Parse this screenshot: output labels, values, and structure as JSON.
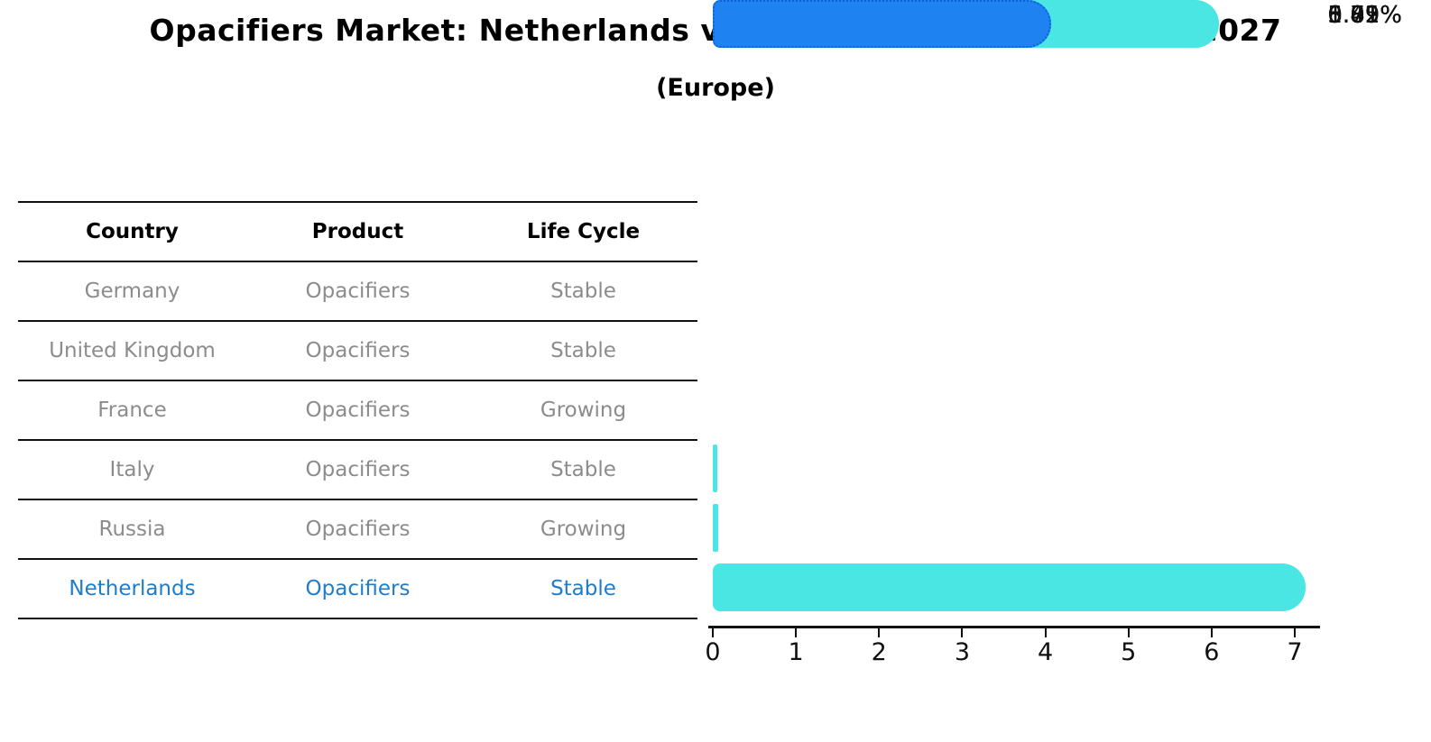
{
  "title": "Opacifiers Market: Netherlands vs Top 5 Major Economies in 2027",
  "subtitle": "(Europe)",
  "table": {
    "columns": {
      "country": "Country",
      "product": "Product",
      "life_cycle": "Life Cycle"
    },
    "rows": [
      {
        "country": "Germany",
        "product": "Opacifiers",
        "life_cycle": "Stable",
        "highlighted": false
      },
      {
        "country": "United Kingdom",
        "product": "Opacifiers",
        "life_cycle": "Stable",
        "highlighted": false
      },
      {
        "country": "France",
        "product": "Opacifiers",
        "life_cycle": "Growing",
        "highlighted": false
      },
      {
        "country": "Italy",
        "product": "Opacifiers",
        "life_cycle": "Stable",
        "highlighted": false
      },
      {
        "country": "Russia",
        "product": "Opacifiers",
        "life_cycle": "Growing",
        "highlighted": false
      },
      {
        "country": "Netherlands",
        "product": "Opacifiers",
        "life_cycle": "Stable",
        "highlighted": true
      }
    ]
  },
  "chart_data": {
    "type": "bar",
    "orientation": "horizontal",
    "title": "Opacifiers Market: Netherlands vs Top 5 Major Economies in 2027",
    "subtitle": "(Europe)",
    "categories": [
      "Germany",
      "United Kingdom",
      "France",
      "Italy",
      "Russia",
      "Netherlands"
    ],
    "values": [
      0.01,
      0.02,
      6.85,
      1.49,
      5.81,
      3.79
    ],
    "value_labels": [
      "0.01%",
      "0.02%",
      "6.85%",
      "1.49%",
      "5.81%",
      "3.79%"
    ],
    "unit": "percent",
    "xlim": [
      0,
      7
    ],
    "x_ticks": [
      "0",
      "1",
      "2",
      "3",
      "4",
      "5",
      "6",
      "7"
    ],
    "grid": false,
    "legend": "none",
    "bar_color": "#4ae6e3",
    "highlight_index": 5,
    "highlight_color": "#1e82f0",
    "highlight_border_color": "#0e62d6"
  },
  "colors": {
    "text": "#000000",
    "muted_text": "#8c8c8c",
    "highlight_text": "#1f7ccb",
    "line": "#111111",
    "background": "#ffffff"
  }
}
